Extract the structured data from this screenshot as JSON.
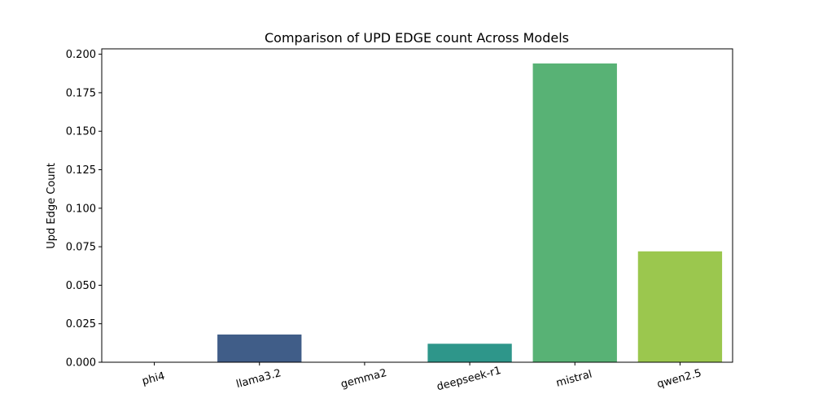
{
  "chart_data": {
    "type": "bar",
    "title": "Comparison of UPD EDGE count Across Models",
    "xlabel": "",
    "ylabel": "Upd Edge Count",
    "categories": [
      "phi4",
      "llama3.2",
      "gemma2",
      "deepseek-r1",
      "mistral",
      "qwen2.5"
    ],
    "values": [
      0.0,
      0.018,
      0.0,
      0.012,
      0.194,
      0.072
    ],
    "colors": [
      "#46317e",
      "#405d88",
      "#30818e",
      "#2e968a",
      "#58b275",
      "#9bc74e"
    ],
    "ylim": [
      0,
      0.2035
    ],
    "yticks": [
      "0.000",
      "0.025",
      "0.050",
      "0.075",
      "0.100",
      "0.125",
      "0.150",
      "0.175",
      "0.200"
    ],
    "grid": false
  }
}
